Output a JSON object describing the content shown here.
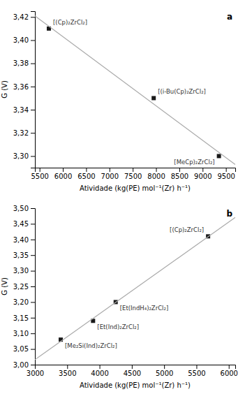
{
  "chart_data": [
    {
      "type": "scatter",
      "title": "a",
      "x_label": "Atividade (kg(PE) mol⁻¹(Zr) h⁻¹)",
      "y_label": "G (V)",
      "xlim": [
        5400,
        9700
      ],
      "ylim": [
        3.29,
        3.425
      ],
      "xticks": [
        5500,
        6000,
        6500,
        7000,
        7500,
        8000,
        8500,
        9000,
        9500
      ],
      "yticks": [
        {
          "value": 3.3,
          "label": "3,30"
        },
        {
          "value": 3.32,
          "label": "3,32"
        },
        {
          "value": 3.34,
          "label": "3,34"
        },
        {
          "value": 3.36,
          "label": "3,36"
        },
        {
          "value": 3.38,
          "label": "3,38"
        },
        {
          "value": 3.4,
          "label": "3,40"
        },
        {
          "value": 3.42,
          "label": "3,42"
        }
      ],
      "grid": false,
      "series": [
        {
          "type": "scatter",
          "color": "#1a1a1a",
          "marker": "square",
          "x": [
            5700,
            7950,
            9350
          ],
          "values": [
            3.41,
            3.35,
            3.3
          ],
          "labels": [
            "[(Cp)₂ZrCl₂]",
            "[(i-Bu(Cp)₂ZrCl₂]",
            "[MeCp)₂ZrCl₂]"
          ]
        },
        {
          "type": "line",
          "color": "#aaaaaa",
          "line_style": "solid",
          "x": [
            5400,
            9700
          ],
          "values": [
            3.4209044,
            3.2927181
          ]
        }
      ]
    },
    {
      "type": "scatter",
      "title": "b",
      "x_label": "Atividade (kg(PE) mol⁻¹(Zr) h⁻¹)",
      "y_label": "G (V)",
      "xlim": [
        3000,
        6100
      ],
      "ylim": [
        3.0,
        3.5
      ],
      "xticks": [
        3000,
        3500,
        4000,
        4500,
        5000,
        5500,
        6000
      ],
      "yticks": [
        {
          "value": 3.0,
          "label": "3,00"
        },
        {
          "value": 3.05,
          "label": "3,05"
        },
        {
          "value": 3.1,
          "label": "3,10"
        },
        {
          "value": 3.15,
          "label": "3,15"
        },
        {
          "value": 3.2,
          "label": "3,20"
        },
        {
          "value": 3.25,
          "label": "3,25"
        },
        {
          "value": 3.3,
          "label": "3,30"
        },
        {
          "value": 3.35,
          "label": "3,35"
        },
        {
          "value": 3.4,
          "label": "3,40"
        },
        {
          "value": 3.45,
          "label": "3,45"
        },
        {
          "value": 3.5,
          "label": "3,50"
        }
      ],
      "grid": false,
      "series": [
        {
          "type": "scatter",
          "color": "#1a1a1a",
          "marker": "square",
          "x": [
            3400,
            3900,
            4250,
            5680
          ],
          "values": [
            3.08,
            3.14,
            3.2,
            3.41
          ],
          "labels": [
            "[Me₂Si(Ind)₂ZrCl₂]",
            "[Et(Ind)₂ZrCl₂]",
            "[Et(IndH₄)₂ZrCl₂]",
            "[(Cp)₂ZrCl₂]"
          ]
        },
        {
          "type": "line",
          "color": "#aaaaaa",
          "line_style": "solid",
          "x": [
            3000,
            6100
          ],
          "values": [
            3.0158867,
            3.4701898
          ]
        }
      ]
    }
  ]
}
